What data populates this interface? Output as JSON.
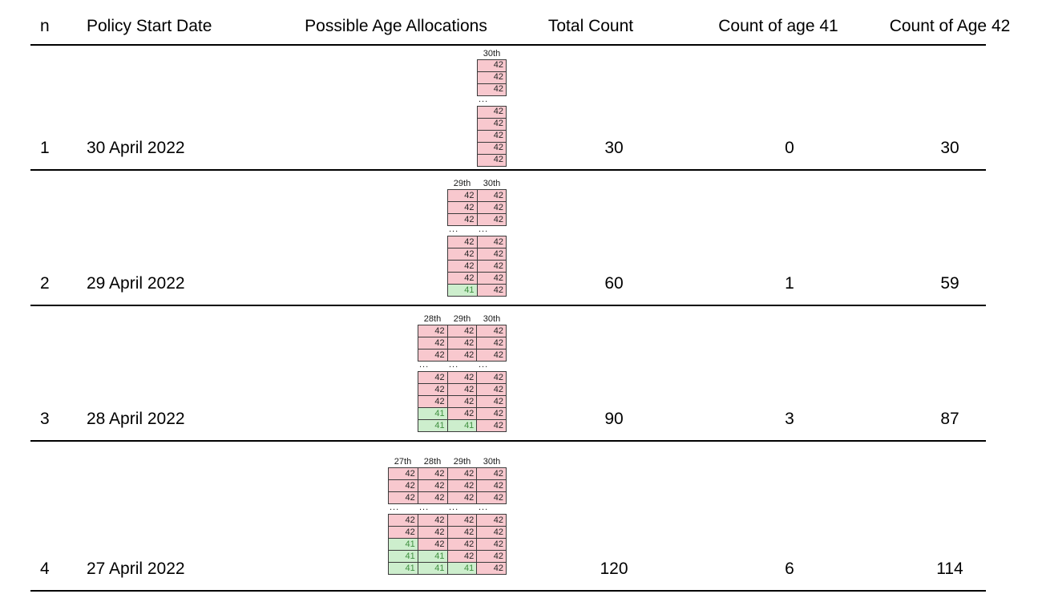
{
  "header": {
    "columns": [
      "n",
      "Policy Start Date",
      "Possible Age Allocations",
      "Total Count",
      "Count of age 41",
      "Count of Age 42"
    ]
  },
  "alloc_ellipsis": "...",
  "colors": {
    "pink_fill": "#F8C8CE",
    "green_fill": "#CDEECD",
    "green_text": "#3F8F3F",
    "value_text": "#262626",
    "cell_border": "#3B3B3B",
    "rule": "#000000"
  },
  "rows": [
    {
      "n": "1",
      "policy_start_date": "30 April 2022",
      "total_count": "30",
      "count_of_age_41": "0",
      "count_of_age_42": "30",
      "allocation": {
        "day_labels": [
          "30th"
        ],
        "top_block": [
          [
            "42"
          ],
          [
            "42"
          ],
          [
            "42"
          ]
        ],
        "bottom_block": [
          [
            "42"
          ],
          [
            "42"
          ],
          [
            "42"
          ],
          [
            "42"
          ],
          [
            "42"
          ]
        ]
      }
    },
    {
      "n": "2",
      "policy_start_date": "29 April 2022",
      "total_count": "60",
      "count_of_age_41": "1",
      "count_of_age_42": "59",
      "allocation": {
        "day_labels": [
          "29th",
          "30th"
        ],
        "top_block": [
          [
            "42",
            "42"
          ],
          [
            "42",
            "42"
          ],
          [
            "42",
            "42"
          ]
        ],
        "bottom_block": [
          [
            "42",
            "42"
          ],
          [
            "42",
            "42"
          ],
          [
            "42",
            "42"
          ],
          [
            "42",
            "42"
          ],
          [
            "41",
            "42"
          ]
        ]
      }
    },
    {
      "n": "3",
      "policy_start_date": "28 April 2022",
      "total_count": "90",
      "count_of_age_41": "3",
      "count_of_age_42": "87",
      "allocation": {
        "day_labels": [
          "28th",
          "29th",
          "30th"
        ],
        "top_block": [
          [
            "42",
            "42",
            "42"
          ],
          [
            "42",
            "42",
            "42"
          ],
          [
            "42",
            "42",
            "42"
          ]
        ],
        "bottom_block": [
          [
            "42",
            "42",
            "42"
          ],
          [
            "42",
            "42",
            "42"
          ],
          [
            "42",
            "42",
            "42"
          ],
          [
            "41",
            "42",
            "42"
          ],
          [
            "41",
            "41",
            "42"
          ]
        ]
      }
    },
    {
      "n": "4",
      "policy_start_date": "27 April 2022",
      "total_count": "120",
      "count_of_age_41": "6",
      "count_of_age_42": "114",
      "allocation": {
        "day_labels": [
          "27th",
          "28th",
          "29th",
          "30th"
        ],
        "top_block": [
          [
            "42",
            "42",
            "42",
            "42"
          ],
          [
            "42",
            "42",
            "42",
            "42"
          ],
          [
            "42",
            "42",
            "42",
            "42"
          ]
        ],
        "bottom_block": [
          [
            "42",
            "42",
            "42",
            "42"
          ],
          [
            "42",
            "42",
            "42",
            "42"
          ],
          [
            "41",
            "42",
            "42",
            "42"
          ],
          [
            "41",
            "41",
            "42",
            "42"
          ],
          [
            "41",
            "41",
            "41",
            "42"
          ]
        ]
      }
    }
  ]
}
